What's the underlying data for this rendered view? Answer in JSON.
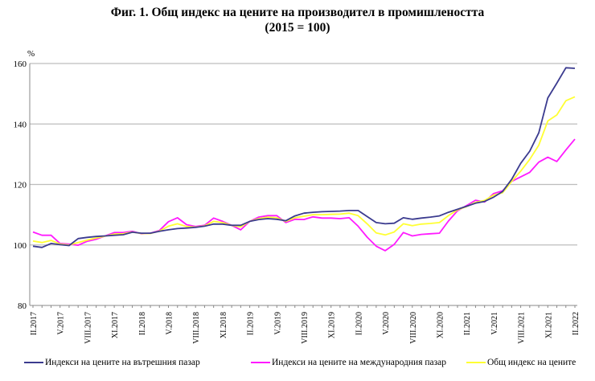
{
  "chart_data": {
    "type": "line",
    "title": "Фиг. 1. Общ индекс на цените на производител в промишлеността",
    "subtitle": "(2015 = 100)",
    "ylabel": "%",
    "xlabel": "",
    "ylim": [
      80,
      160
    ],
    "yticks": [
      80,
      100,
      120,
      140,
      160
    ],
    "grid": true,
    "legend_position": "bottom",
    "x_tick_labels": [
      "II.2017",
      "V.2017",
      "VIII.2017",
      "XI.2017",
      "II.2018",
      "V.2018",
      "VIII.2018",
      "XI.2018",
      "II.2019",
      "V.2019",
      "VIII.2019",
      "XI.2019",
      "II.2020",
      "V.2020",
      "VIII.2020",
      "XI.2020",
      "II.2021",
      "V.2021",
      "VIII.2021",
      "XI.2021",
      "II.2022"
    ],
    "x_tick_every_months": 3,
    "series": [
      {
        "name": "Индекси на цените на вътрешния пазар",
        "color": "#3b3b8f",
        "values": [
          99.6,
          99.2,
          100.5,
          100.1,
          99.8,
          102.1,
          102.5,
          102.8,
          103.0,
          103.2,
          103.4,
          104.2,
          103.9,
          103.9,
          104.5,
          105.0,
          105.4,
          105.6,
          105.8,
          106.2,
          106.9,
          106.9,
          106.5,
          106.5,
          107.8,
          108.4,
          108.7,
          108.5,
          108.0,
          109.6,
          110.5,
          110.8,
          111.0,
          111.1,
          111.2,
          111.4,
          111.4,
          109.4,
          107.4,
          107.0,
          107.2,
          109.0,
          108.5,
          108.9,
          109.2,
          109.6,
          110.8,
          111.8,
          112.8,
          113.8,
          114.4,
          115.8,
          117.7,
          121.7,
          127.0,
          131.0,
          137.1,
          148.6,
          153.5,
          158.6,
          158.4
        ]
      },
      {
        "name": "Индекси на цените на международния пазар",
        "color": "#ff1aff",
        "values": [
          104.3,
          103.2,
          103.2,
          100.5,
          100.3,
          99.9,
          101.2,
          101.9,
          103.0,
          104.1,
          104.1,
          104.5,
          103.7,
          103.9,
          104.8,
          107.7,
          109.0,
          106.7,
          106.1,
          106.5,
          108.9,
          107.8,
          106.5,
          105.0,
          107.8,
          109.2,
          109.7,
          109.7,
          107.4,
          108.5,
          108.4,
          109.3,
          108.9,
          108.9,
          108.7,
          109.0,
          106.2,
          102.6,
          99.6,
          98.1,
          100.2,
          104.1,
          103.0,
          103.5,
          103.7,
          103.9,
          107.9,
          111.3,
          113.0,
          114.8,
          114.2,
          117.0,
          117.9,
          121.0,
          122.5,
          124.0,
          127.4,
          129.0,
          127.6,
          131.4,
          135.0
        ]
      },
      {
        "name": "Общ индекс на цените",
        "color": "#ffff33",
        "values": [
          101.3,
          100.8,
          101.5,
          100.3,
          100.0,
          100.8,
          101.6,
          102.3,
          102.9,
          103.6,
          103.7,
          104.3,
          103.8,
          103.8,
          104.6,
          106.2,
          107.0,
          106.1,
          105.9,
          106.3,
          107.8,
          107.4,
          106.5,
          106.0,
          107.8,
          108.7,
          109.2,
          109.0,
          107.8,
          109.0,
          109.5,
          110.0,
          110.0,
          110.1,
          110.2,
          110.5,
          109.7,
          107.0,
          104.0,
          103.3,
          104.3,
          107.0,
          106.4,
          106.9,
          107.1,
          107.4,
          109.7,
          111.6,
          112.7,
          114.1,
          114.7,
          116.5,
          117.3,
          121.0,
          124.4,
          128.3,
          133.0,
          141.0,
          143.0,
          147.7,
          149.0
        ]
      }
    ]
  }
}
